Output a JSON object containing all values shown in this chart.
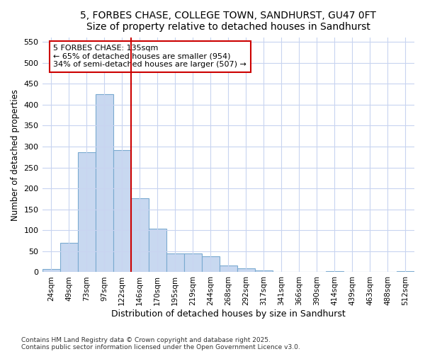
{
  "title_line1": "5, FORBES CHASE, COLLEGE TOWN, SANDHURST, GU47 0FT",
  "title_line2": "Size of property relative to detached houses in Sandhurst",
  "xlabel": "Distribution of detached houses by size in Sandhurst",
  "ylabel": "Number of detached properties",
  "bar_labels": [
    "24sqm",
    "49sqm",
    "73sqm",
    "97sqm",
    "122sqm",
    "146sqm",
    "170sqm",
    "195sqm",
    "219sqm",
    "244sqm",
    "268sqm",
    "292sqm",
    "317sqm",
    "341sqm",
    "366sqm",
    "390sqm",
    "414sqm",
    "439sqm",
    "463sqm",
    "488sqm",
    "512sqm"
  ],
  "bar_values": [
    7,
    70,
    287,
    425,
    292,
    177,
    104,
    44,
    44,
    38,
    16,
    9,
    4,
    1,
    0,
    0,
    3,
    0,
    0,
    0,
    2
  ],
  "bar_color": "#c8d8f0",
  "bar_edge_color": "#7aaad0",
  "vline_x": 4.5,
  "vline_color": "#cc0000",
  "annotation_text": "5 FORBES CHASE: 135sqm\n← 65% of detached houses are smaller (954)\n34% of semi-detached houses are larger (507) →",
  "annotation_box_color": "#ffffff",
  "annotation_box_edge": "#cc0000",
  "ylim": [
    0,
    560
  ],
  "yticks": [
    0,
    50,
    100,
    150,
    200,
    250,
    300,
    350,
    400,
    450,
    500,
    550
  ],
  "footer_text": "Contains HM Land Registry data © Crown copyright and database right 2025.\nContains public sector information licensed under the Open Government Licence v3.0.",
  "bg_color": "#ffffff",
  "grid_color": "#c8d4f0",
  "title_color": "#000000"
}
